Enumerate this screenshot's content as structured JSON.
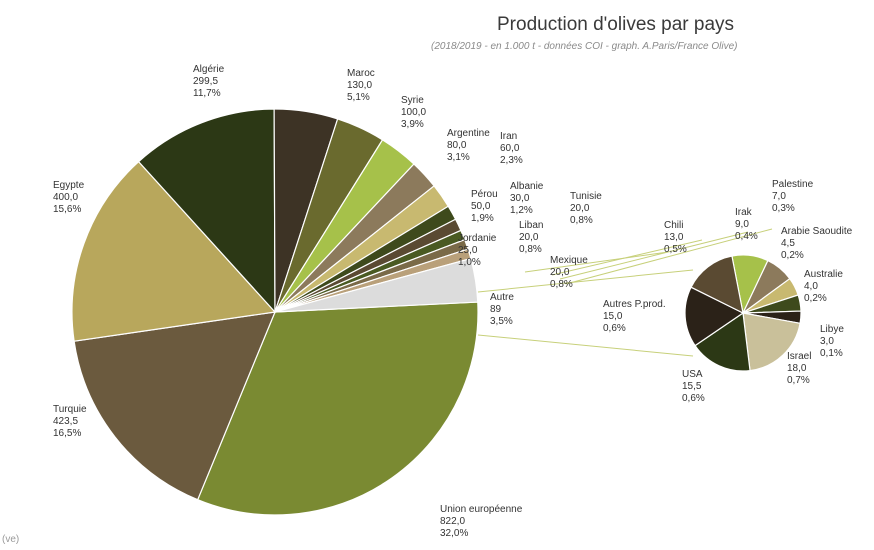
{
  "page": {
    "stray_text": "(ve)"
  },
  "chart_data": {
    "type": "pie",
    "title": "Production d'olives par pays",
    "subtitle": "(2018/2019 - en 1.000 t - données COI - graph. A.Paris/France Olive)",
    "main": {
      "slices": [
        {
          "label": "Union européenne",
          "value": "822,0",
          "pct": "32,0%",
          "num": 822.0,
          "color": "#7a8a32"
        },
        {
          "label": "Turquie",
          "value": "423,5",
          "pct": "16,5%",
          "num": 423.5,
          "color": "#6b5a3e"
        },
        {
          "label": "Egypte",
          "value": "400,0",
          "pct": "15,6%",
          "num": 400.0,
          "color": "#b8a75c"
        },
        {
          "label": "Algérie",
          "value": "299,5",
          "pct": "11,7%",
          "num": 299.5,
          "color": "#2c3815"
        },
        {
          "label": "Maroc",
          "value": "130,0",
          "pct": "5,1%",
          "num": 130.0,
          "color": "#3d3325"
        },
        {
          "label": "Syrie",
          "value": "100,0",
          "pct": "3,9%",
          "num": 100.0,
          "color": "#6a6a2e"
        },
        {
          "label": "Argentine",
          "value": "80,0",
          "pct": "3,1%",
          "num": 80.0,
          "color": "#a6c14a"
        },
        {
          "label": "Iran",
          "value": "60,0",
          "pct": "2,3%",
          "num": 60.0,
          "color": "#8c7a5c"
        },
        {
          "label": "Pérou",
          "value": "50,0",
          "pct": "1,9%",
          "num": 50.0,
          "color": "#c8b970"
        },
        {
          "label": "Albanie",
          "value": "30,0",
          "pct": "1,2%",
          "num": 30.0,
          "color": "#3e4a1c"
        },
        {
          "label": "Jordanie",
          "value": "25,0",
          "pct": "1,0%",
          "num": 25.0,
          "color": "#5a4a32"
        },
        {
          "label": "Liban",
          "value": "20,0",
          "pct": "0,8%",
          "num": 20.0,
          "color": "#4a5a22"
        },
        {
          "label": "Tunisie",
          "value": "20,0",
          "pct": "0,8%",
          "num": 20.0,
          "color": "#7a6a48"
        },
        {
          "label": "Mexique",
          "value": "20,0",
          "pct": "0,8%",
          "num": 20.0,
          "color": "#b9a07a"
        },
        {
          "label": "Autre",
          "value": "89",
          "pct": "3,5%",
          "num": 89.0,
          "color": "#dcdcdc"
        }
      ]
    },
    "secondary": {
      "slices": [
        {
          "label": "Irak",
          "value": "9,0",
          "pct": "0,4%",
          "num": 9.0,
          "color": "#a6c14a"
        },
        {
          "label": "Palestine",
          "value": "7,0",
          "pct": "0,3%",
          "num": 7.0,
          "color": "#8c7a5c"
        },
        {
          "label": "Arabie Saoudite",
          "value": "4,5",
          "pct": "0,2%",
          "num": 4.5,
          "color": "#c8b970"
        },
        {
          "label": "Australie",
          "value": "4,0",
          "pct": "0,2%",
          "num": 4.0,
          "color": "#3e4a1c"
        },
        {
          "label": "Libye",
          "value": "3,0",
          "pct": "0,1%",
          "num": 3.0,
          "color": "#2b2218"
        },
        {
          "label": "Israel",
          "value": "18,0",
          "pct": "0,7%",
          "num": 18.0,
          "color": "#c9c09a"
        },
        {
          "label": "USA",
          "value": "15,5",
          "pct": "0,6%",
          "num": 15.5,
          "color": "#2c3815"
        },
        {
          "label": "Autres P.prod.",
          "value": "15,0",
          "pct": "0,6%",
          "num": 15.0,
          "color": "#2b2218"
        },
        {
          "label": "Chili",
          "value": "13,0",
          "pct": "0,5%",
          "num": 13.0,
          "color": "#5a4a32"
        }
      ]
    }
  }
}
